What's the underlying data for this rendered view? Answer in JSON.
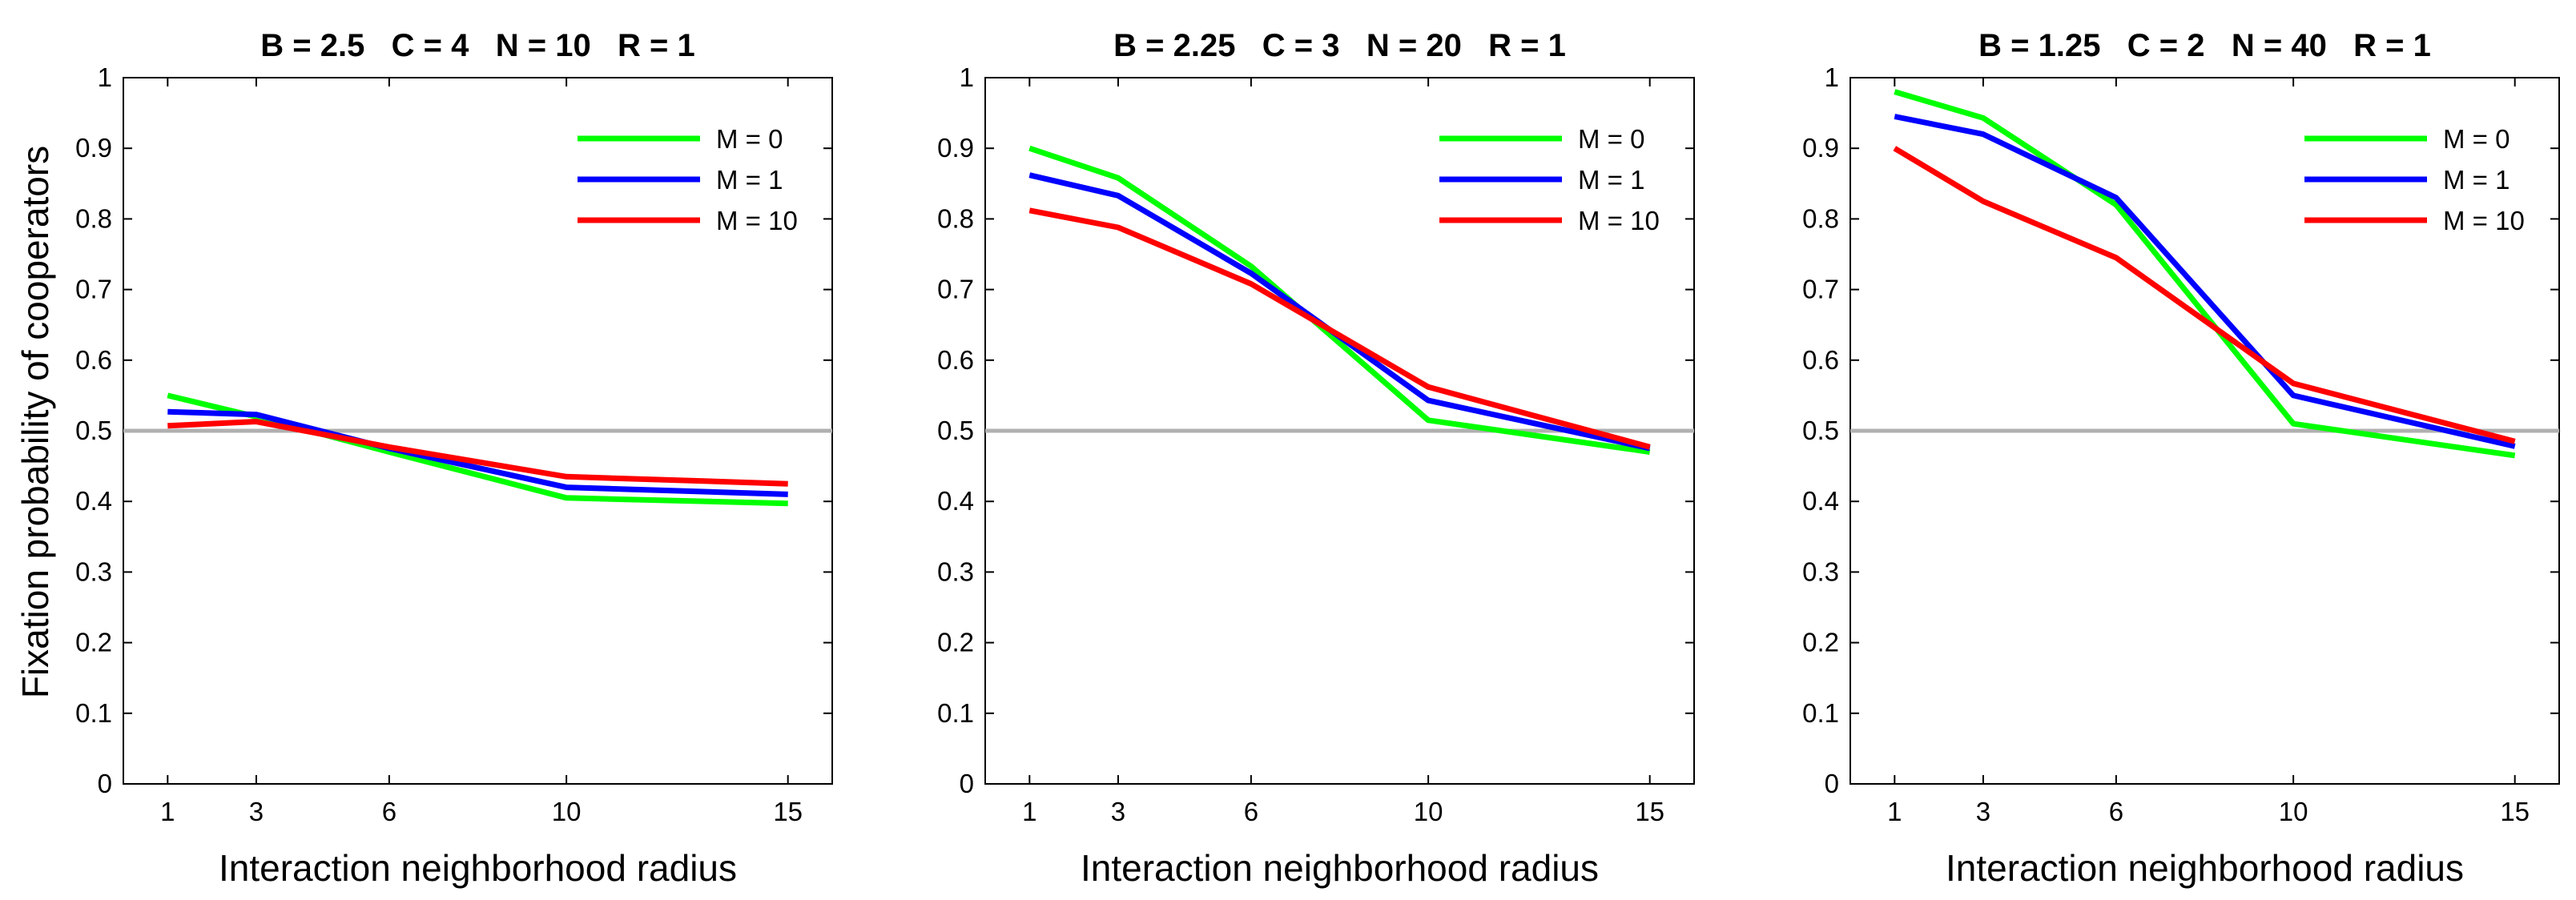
{
  "figure": {
    "ylabel": "Fixation probability of cooperators",
    "xlabel": "Interaction neighborhood radius"
  },
  "chart_data": [
    {
      "type": "line",
      "title": "B = 2.5   C = 4   N = 10   R = 1",
      "xlabel": "Interaction neighborhood radius",
      "ylabel": "Fixation probability of cooperators",
      "x": [
        1,
        3,
        6,
        10,
        15
      ],
      "xticks": [
        "1",
        "3",
        "6",
        "10",
        "15"
      ],
      "yticks": [
        "0",
        "0.1",
        "0.2",
        "0.3",
        "0.4",
        "0.5",
        "0.6",
        "0.7",
        "0.8",
        "0.9",
        "1"
      ],
      "xlim": [
        0,
        16
      ],
      "ylim": [
        0,
        1
      ],
      "reference_line": 0.5,
      "legend_position": "top-right",
      "series": [
        {
          "name": "M = 0",
          "color": "#00ff00",
          "values": [
            0.55,
            0.52,
            0.47,
            0.405,
            0.397
          ]
        },
        {
          "name": "M = 1",
          "color": "#0000ff",
          "values": [
            0.527,
            0.523,
            0.475,
            0.42,
            0.41
          ]
        },
        {
          "name": "M = 10",
          "color": "#ff0000",
          "values": [
            0.507,
            0.513,
            0.477,
            0.435,
            0.425
          ]
        }
      ]
    },
    {
      "type": "line",
      "title": "B = 2.25   C = 3   N = 20   R = 1",
      "xlabel": "Interaction neighborhood radius",
      "ylabel": "",
      "x": [
        1,
        3,
        6,
        10,
        15
      ],
      "xticks": [
        "1",
        "3",
        "6",
        "10",
        "15"
      ],
      "yticks": [
        "0",
        "0.1",
        "0.2",
        "0.3",
        "0.4",
        "0.5",
        "0.6",
        "0.7",
        "0.8",
        "0.9",
        "1"
      ],
      "xlim": [
        0,
        16
      ],
      "ylim": [
        0,
        1
      ],
      "reference_line": 0.5,
      "legend_position": "top-right",
      "series": [
        {
          "name": "M = 0",
          "color": "#00ff00",
          "values": [
            0.9,
            0.858,
            0.733,
            0.515,
            0.47
          ]
        },
        {
          "name": "M = 1",
          "color": "#0000ff",
          "values": [
            0.862,
            0.833,
            0.723,
            0.543,
            0.475
          ]
        },
        {
          "name": "M = 10",
          "color": "#ff0000",
          "values": [
            0.812,
            0.788,
            0.708,
            0.562,
            0.477
          ]
        }
      ]
    },
    {
      "type": "line",
      "title": "B = 1.25   C = 2   N = 40   R = 1",
      "xlabel": "Interaction neighborhood radius",
      "ylabel": "",
      "x": [
        1,
        3,
        6,
        10,
        15
      ],
      "xticks": [
        "1",
        "3",
        "6",
        "10",
        "15"
      ],
      "yticks": [
        "0",
        "0.1",
        "0.2",
        "0.3",
        "0.4",
        "0.5",
        "0.6",
        "0.7",
        "0.8",
        "0.9",
        "1"
      ],
      "xlim": [
        0,
        16
      ],
      "ylim": [
        0,
        1
      ],
      "reference_line": 0.5,
      "legend_position": "top-right",
      "series": [
        {
          "name": "M = 0",
          "color": "#00ff00",
          "values": [
            0.98,
            0.943,
            0.82,
            0.51,
            0.465
          ]
        },
        {
          "name": "M = 1",
          "color": "#0000ff",
          "values": [
            0.945,
            0.92,
            0.83,
            0.55,
            0.478
          ]
        },
        {
          "name": "M = 10",
          "color": "#ff0000",
          "values": [
            0.9,
            0.825,
            0.745,
            0.567,
            0.485
          ]
        }
      ]
    }
  ]
}
